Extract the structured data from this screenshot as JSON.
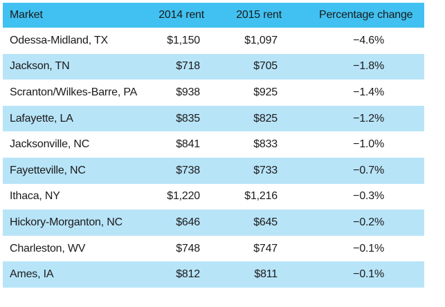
{
  "chart_data": {
    "type": "table",
    "columns": [
      "Market",
      "2014 rent",
      "2015 rent",
      "Percentage change"
    ],
    "rows": [
      {
        "market": "Odessa-Midland, TX",
        "rent_2014": "$1,150",
        "rent_2015": "$1,097",
        "change": "−4.6%"
      },
      {
        "market": "Jackson, TN",
        "rent_2014": "$718",
        "rent_2015": "$705",
        "change": "−1.8%"
      },
      {
        "market": "Scranton/Wilkes-Barre, PA",
        "rent_2014": "$938",
        "rent_2015": "$925",
        "change": "−1.4%"
      },
      {
        "market": "Lafayette, LA",
        "rent_2014": "$835",
        "rent_2015": "$825",
        "change": "−1.2%"
      },
      {
        "market": "Jacksonville, NC",
        "rent_2014": "$841",
        "rent_2015": "$833",
        "change": "−1.0%"
      },
      {
        "market": "Fayetteville, NC",
        "rent_2014": "$738",
        "rent_2015": "$733",
        "change": "−0.7%"
      },
      {
        "market": "Ithaca, NY",
        "rent_2014": "$1,220",
        "rent_2015": "$1,216",
        "change": "−0.3%"
      },
      {
        "market": "Hickory-Morganton, NC",
        "rent_2014": "$646",
        "rent_2015": "$645",
        "change": "−0.2%"
      },
      {
        "market": "Charleston, WV",
        "rent_2014": "$748",
        "rent_2015": "$747",
        "change": "−0.1%"
      },
      {
        "market": "Ames, IA",
        "rent_2014": "$812",
        "rent_2015": "$811",
        "change": "−0.1%"
      }
    ]
  },
  "colors": {
    "header_background": "#41c1f1",
    "stripe_background": "#b8e4f8",
    "plain_background": "#ffffff",
    "text": "#1a1a1a"
  }
}
